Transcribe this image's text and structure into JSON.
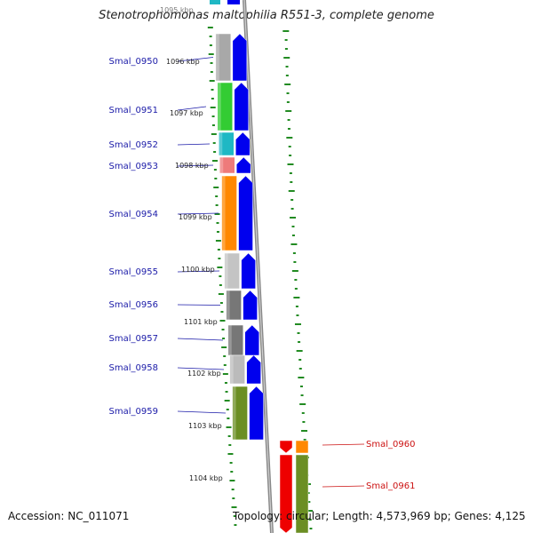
{
  "header": {
    "title": "Stenotrophomonas maltophilia R551-3, complete genome"
  },
  "footer": {
    "accession": "Accession: NC_011071",
    "topology": "Topology: circular; Length: 4,573,969 bp; Genes: 4,125"
  },
  "scale_labels": [
    "1095 kbp",
    "1096 kbp",
    "1097 kbp",
    "1098 kbp",
    "1099 kbp",
    "1100 kbp",
    "1101 kbp",
    "1102 kbp",
    "1103 kbp",
    "1104 kbp"
  ],
  "genes": [
    {
      "name": "Smal_0950",
      "color": "#a8a8a8",
      "strand": "forward"
    },
    {
      "name": "Smal_0951",
      "color": "#33cc33",
      "strand": "forward"
    },
    {
      "name": "Smal_0952",
      "color": "#1fb8c4",
      "strand": "forward"
    },
    {
      "name": "Smal_0953",
      "color": "#ee7a7a",
      "strand": "forward"
    },
    {
      "name": "Smal_0954",
      "color": "#ff8800",
      "strand": "forward"
    },
    {
      "name": "Smal_0955",
      "color": "#c4c4c4",
      "strand": "forward"
    },
    {
      "name": "Smal_0956",
      "color": "#777777",
      "strand": "forward"
    },
    {
      "name": "Smal_0957",
      "color": "#777777",
      "strand": "forward"
    },
    {
      "name": "Smal_0958",
      "color": "#bbbbbb",
      "strand": "forward"
    },
    {
      "name": "Smal_0959",
      "color": "#6b8e23",
      "strand": "forward"
    },
    {
      "name": "Smal_0960",
      "color": "#dd0000",
      "strand": "reverse"
    },
    {
      "name": "Smal_0961",
      "color": "#dd0000",
      "strand": "reverse"
    }
  ],
  "colors": {
    "forward_strand": "#0000ee",
    "reverse_strand": "#ee0000",
    "forward_label": "#1a1aa8",
    "reverse_label": "#cc1111",
    "tick": "#228b22",
    "backbone": "#888888"
  }
}
